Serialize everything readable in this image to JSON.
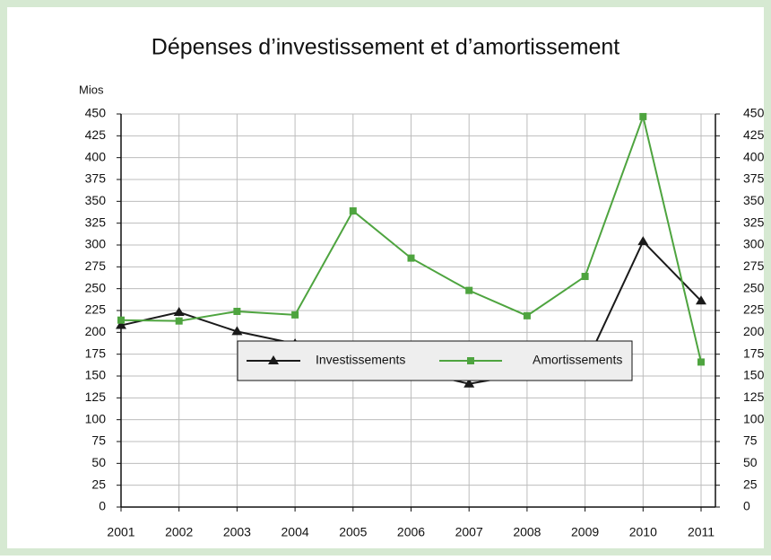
{
  "chart_data": {
    "type": "line",
    "title": "Dépenses d’investissement et d’amortissement",
    "ylabel": "Mios",
    "categories": [
      "2001",
      "2002",
      "2003",
      "2004",
      "2005",
      "2006",
      "2007",
      "2008",
      "2009",
      "2010",
      "2011"
    ],
    "series": [
      {
        "name": "Investissements",
        "color": "#1a1a1a",
        "marker": "triangle",
        "values": [
          208,
          223,
          201,
          187,
          159,
          157,
          141,
          153,
          162,
          304,
          236
        ]
      },
      {
        "name": "Amortissements",
        "color": "#4ea43f",
        "marker": "square",
        "values": [
          214,
          213,
          224,
          220,
          339,
          285,
          248,
          219,
          264,
          447,
          166
        ]
      }
    ],
    "ylim": [
      0,
      450
    ],
    "yticks": [
      0,
      25,
      50,
      75,
      100,
      125,
      150,
      175,
      200,
      225,
      250,
      275,
      300,
      325,
      350,
      375,
      400,
      425,
      450
    ],
    "y2lim": [
      0,
      450
    ],
    "y2ticks": [
      0,
      25,
      50,
      75,
      100,
      125,
      150,
      175,
      200,
      225,
      250,
      275,
      300,
      325,
      350,
      375,
      400,
      425,
      450
    ],
    "grid": true,
    "legend": "lower center"
  }
}
